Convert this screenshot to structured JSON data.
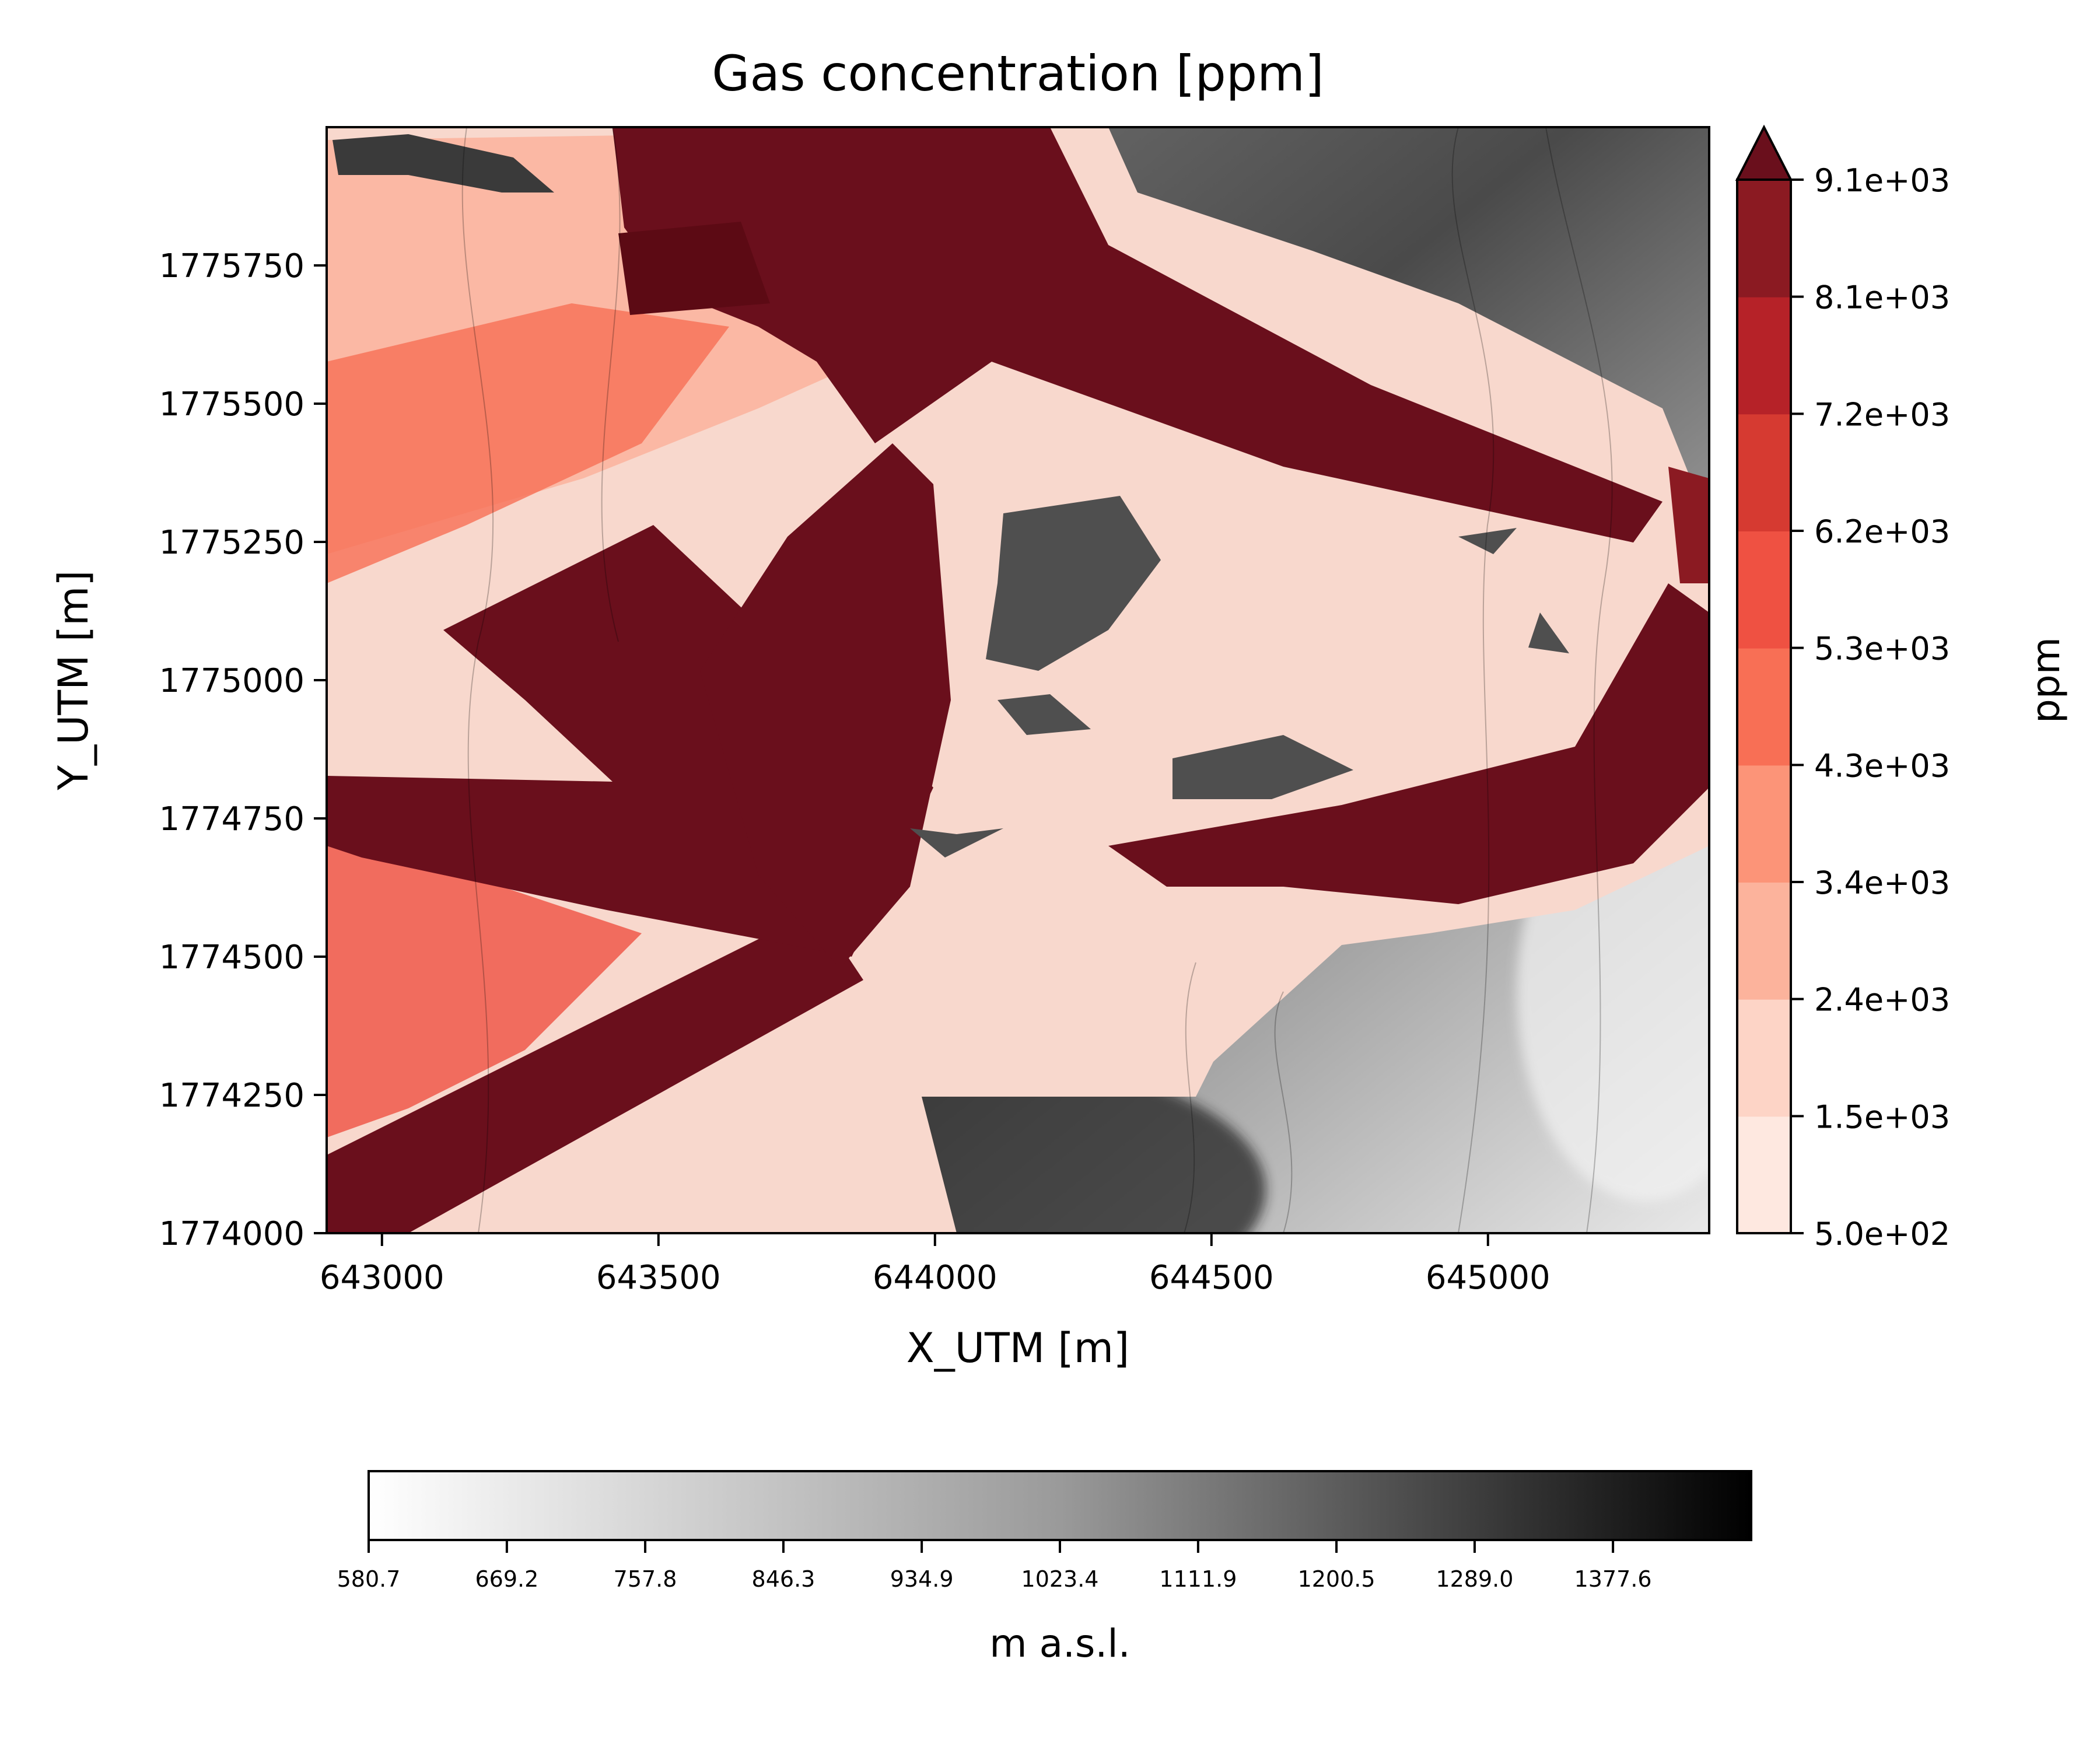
{
  "chart_data": [
    {
      "type": "heatmap",
      "title": "Gas concentration [ppm]",
      "xlabel": "X_UTM [m]",
      "ylabel": "Y_UTM [m]",
      "xlim": [
        642900,
        645400
      ],
      "ylim": [
        1774000,
        1776000
      ],
      "xticks": [
        643000,
        643500,
        644000,
        644500,
        645000
      ],
      "xtick_labels": [
        "643000",
        "643500",
        "644000",
        "644500",
        "645000"
      ],
      "yticks": [
        1774000,
        1774250,
        1774500,
        1774750,
        1775000,
        1775250,
        1775500,
        1775750
      ],
      "ytick_labels": [
        "1774000",
        "1774250",
        "1774500",
        "1774750",
        "1775000",
        "1775250",
        "1775500",
        "1775750"
      ],
      "description": "Filled contour map of gas concentration (red scale) overlaid on grey-shaded terrain elevation with thin contour lines; highest concentrations form radiating plume bands.",
      "colorbar": {
        "label": "ppm",
        "levels": [
          500,
          1500,
          2400,
          3400,
          4300,
          5300,
          6200,
          7200,
          8100,
          9100
        ],
        "tick_labels": [
          "5.0e+02",
          "1.5e+03",
          "2.4e+03",
          "3.4e+03",
          "4.3e+03",
          "5.3e+03",
          "6.2e+03",
          "7.2e+03",
          "8.1e+03",
          "9.1e+03"
        ],
        "colors": [
          "#fee8e0",
          "#fdd4c6",
          "#fcb39c",
          "#fc9478",
          "#f86f55",
          "#ef5142",
          "#d63a31",
          "#b62228",
          "#8b1a22",
          "#6a0f1c"
        ],
        "extend": "max",
        "orientation": "vertical"
      }
    },
    {
      "type": "colorbar",
      "label": "m a.s.l.",
      "orientation": "horizontal",
      "ticks": [
        580.7,
        669.2,
        757.8,
        846.3,
        934.9,
        1023.4,
        1111.9,
        1200.5,
        1289.0,
        1377.6
      ],
      "tick_labels": [
        "580.7",
        "669.2",
        "757.8",
        "846.3",
        "934.9",
        "1023.4",
        "1111.9",
        "1200.5",
        "1289.0",
        "1377.6"
      ],
      "range": [
        580.7,
        1466.1
      ],
      "colormap": "white-to-black"
    }
  ]
}
